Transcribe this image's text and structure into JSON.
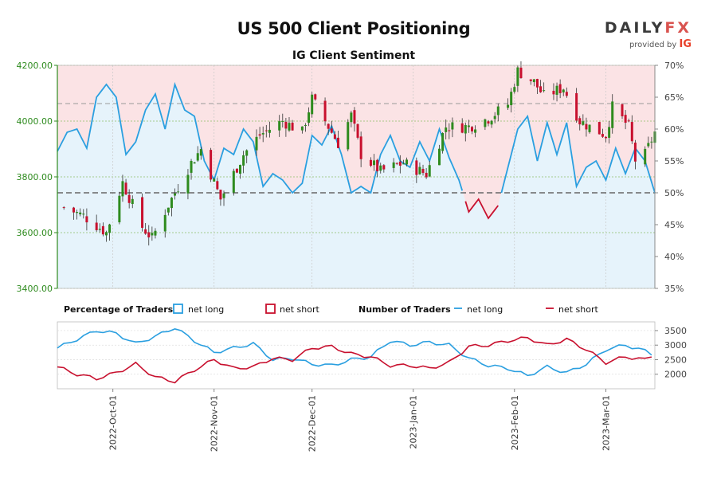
{
  "title": "US 500 Client Positioning",
  "subtitle": "IG Client Sentiment",
  "logo": {
    "brand_main": "DAILY",
    "brand_fx": "FX",
    "provided_by": "provided by",
    "provider": "IG"
  },
  "colors": {
    "long": "#2a9fe0",
    "short": "#c8102e",
    "long_fill": "#e6f3fb",
    "short_fill": "#fbe3e5",
    "candle_up": "#2e8b1e",
    "candle_down": "#c8102e",
    "price_axis": "#2e8b1e",
    "grid": "#8fbf6a"
  },
  "legend": {
    "pct_title": "Percentage of Traders",
    "count_title": "Number of Traders",
    "long": "net long",
    "short": "net short"
  },
  "chart_data": {
    "type": "candlestick_with_sentiment",
    "x_range": [
      "2022-09-14",
      "2023-03-16"
    ],
    "x_tick_labels": [
      "2022-Oct-01",
      "2022-Nov-01",
      "2022-Dec-01",
      "2023-Jan-01",
      "2023-Feb-01",
      "2023-Mar-01"
    ],
    "x_tick_dates": [
      "2022-10-01",
      "2022-11-01",
      "2022-12-01",
      "2023-01-01",
      "2023-02-01",
      "2023-03-01"
    ],
    "price_axis": {
      "ylim": [
        3400,
        4200
      ],
      "ticks": [
        "3400.00",
        "3600.00",
        "3800.00",
        "4000.00",
        "4200.00"
      ]
    },
    "pct_axis": {
      "ylim": [
        35,
        70
      ],
      "ticks": [
        "35%",
        "40%",
        "45%",
        "50%",
        "55%",
        "60%",
        "65%",
        "70%"
      ],
      "reference_lines": [
        50,
        64
      ]
    },
    "count_axis": {
      "ylim": [
        1500,
        3800
      ],
      "ticks": [
        "2000",
        "2500",
        "3000",
        "3500"
      ]
    },
    "price_anchors": [
      [
        "2022-09-16",
        3690
      ],
      [
        "2022-09-22",
        3660
      ],
      [
        "2022-09-29",
        3600
      ],
      [
        "2022-10-04",
        3780
      ],
      [
        "2022-10-10",
        3620
      ],
      [
        "2022-10-13",
        3580
      ],
      [
        "2022-10-18",
        3700
      ],
      [
        "2022-10-25",
        3850
      ],
      [
        "2022-10-28",
        3900
      ],
      [
        "2022-11-03",
        3720
      ],
      [
        "2022-11-10",
        3880
      ],
      [
        "2022-11-15",
        3950
      ],
      [
        "2022-11-22",
        4000
      ],
      [
        "2022-11-28",
        3960
      ],
      [
        "2022-12-01",
        4080
      ],
      [
        "2022-12-05",
        4000
      ],
      [
        "2022-12-09",
        3920
      ],
      [
        "2022-12-13",
        4020
      ],
      [
        "2022-12-16",
        3880
      ],
      [
        "2022-12-22",
        3820
      ],
      [
        "2022-12-29",
        3850
      ],
      [
        "2023-01-05",
        3810
      ],
      [
        "2023-01-11",
        3980
      ],
      [
        "2023-01-18",
        3980
      ],
      [
        "2023-01-24",
        4010
      ],
      [
        "2023-01-30",
        4060
      ],
      [
        "2023-02-02",
        4180
      ],
      [
        "2023-02-07",
        4140
      ],
      [
        "2023-02-10",
        4090
      ],
      [
        "2023-02-16",
        4120
      ],
      [
        "2023-02-21",
        4000
      ],
      [
        "2023-02-24",
        3980
      ],
      [
        "2023-03-01",
        3950
      ],
      [
        "2023-03-03",
        4050
      ],
      [
        "2023-03-08",
        3980
      ],
      [
        "2023-03-10",
        3860
      ],
      [
        "2023-03-13",
        3880
      ],
      [
        "2023-03-16",
        3960
      ]
    ],
    "long_pct_series": [
      [
        "2022-09-14",
        56.5
      ],
      [
        "2022-09-17",
        59.5
      ],
      [
        "2022-09-20",
        60.0
      ],
      [
        "2022-09-23",
        57.0
      ],
      [
        "2022-09-26",
        65.0
      ],
      [
        "2022-09-29",
        67.0
      ],
      [
        "2022-10-02",
        65.0
      ],
      [
        "2022-10-05",
        56.0
      ],
      [
        "2022-10-08",
        58.0
      ],
      [
        "2022-10-11",
        63.0
      ],
      [
        "2022-10-14",
        65.5
      ],
      [
        "2022-10-17",
        60.0
      ],
      [
        "2022-10-20",
        67.0
      ],
      [
        "2022-10-23",
        63.0
      ],
      [
        "2022-10-26",
        62.0
      ],
      [
        "2022-10-29",
        55.0
      ],
      [
        "2022-11-01",
        52.0
      ],
      [
        "2022-11-04",
        57.0
      ],
      [
        "2022-11-07",
        56.0
      ],
      [
        "2022-11-10",
        60.0
      ],
      [
        "2022-11-13",
        58.0
      ],
      [
        "2022-11-16",
        51.0
      ],
      [
        "2022-11-19",
        53.0
      ],
      [
        "2022-11-22",
        52.0
      ],
      [
        "2022-11-25",
        50.0
      ],
      [
        "2022-11-28",
        51.5
      ],
      [
        "2022-12-01",
        59.0
      ],
      [
        "2022-12-04",
        57.5
      ],
      [
        "2022-12-07",
        60.5
      ],
      [
        "2022-12-10",
        56.0
      ],
      [
        "2022-12-13",
        50.0
      ],
      [
        "2022-12-16",
        51.0
      ],
      [
        "2022-12-19",
        50.0
      ],
      [
        "2022-12-22",
        56.0
      ],
      [
        "2022-12-25",
        59.0
      ],
      [
        "2022-12-28",
        55.0
      ],
      [
        "2022-12-31",
        54.0
      ],
      [
        "2023-01-03",
        58.0
      ],
      [
        "2023-01-06",
        55.0
      ],
      [
        "2023-01-09",
        60.0
      ],
      [
        "2023-01-12",
        55.5
      ],
      [
        "2023-01-15",
        52.0
      ],
      [
        "2023-01-18",
        47.0
      ],
      [
        "2023-01-21",
        49.0
      ],
      [
        "2023-01-24",
        46.0
      ],
      [
        "2023-01-27",
        48.0
      ],
      [
        "2023-01-30",
        54.0
      ],
      [
        "2023-02-02",
        60.0
      ],
      [
        "2023-02-05",
        62.0
      ],
      [
        "2023-02-08",
        55.0
      ],
      [
        "2023-02-11",
        61.0
      ],
      [
        "2023-02-14",
        56.0
      ],
      [
        "2023-02-17",
        61.0
      ],
      [
        "2023-02-20",
        51.0
      ],
      [
        "2023-02-23",
        54.0
      ],
      [
        "2023-02-26",
        55.0
      ],
      [
        "2023-03-01",
        52.0
      ],
      [
        "2023-03-04",
        57.0
      ],
      [
        "2023-03-07",
        53.0
      ],
      [
        "2023-03-10",
        57.0
      ],
      [
        "2023-03-13",
        55.0
      ],
      [
        "2023-03-16",
        50.0
      ]
    ],
    "long_count_series": [
      [
        "2022-09-14",
        2900
      ],
      [
        "2022-09-20",
        3200
      ],
      [
        "2022-09-26",
        3500
      ],
      [
        "2022-10-02",
        3400
      ],
      [
        "2022-10-08",
        3050
      ],
      [
        "2022-10-14",
        3300
      ],
      [
        "2022-10-20",
        3600
      ],
      [
        "2022-10-26",
        3150
      ],
      [
        "2022-11-01",
        2750
      ],
      [
        "2022-11-07",
        2900
      ],
      [
        "2022-11-13",
        3050
      ],
      [
        "2022-11-19",
        2500
      ],
      [
        "2022-11-25",
        2550
      ],
      [
        "2022-12-01",
        2350
      ],
      [
        "2022-12-07",
        2300
      ],
      [
        "2022-12-13",
        2500
      ],
      [
        "2022-12-19",
        2600
      ],
      [
        "2022-12-25",
        3150
      ],
      [
        "2022-12-31",
        3000
      ],
      [
        "2023-01-06",
        3100
      ],
      [
        "2023-01-12",
        3000
      ],
      [
        "2023-01-18",
        2550
      ],
      [
        "2023-01-24",
        2300
      ],
      [
        "2023-01-30",
        2200
      ],
      [
        "2023-02-05",
        1950
      ],
      [
        "2023-02-11",
        2250
      ],
      [
        "2023-02-17",
        2050
      ],
      [
        "2023-02-23",
        2350
      ],
      [
        "2023-03-01",
        2850
      ],
      [
        "2023-03-07",
        3000
      ],
      [
        "2023-03-13",
        2800
      ],
      [
        "2023-03-16",
        2650
      ]
    ],
    "short_count_series": [
      [
        "2022-09-14",
        2250
      ],
      [
        "2022-09-20",
        2000
      ],
      [
        "2022-09-26",
        1850
      ],
      [
        "2022-10-02",
        2050
      ],
      [
        "2022-10-08",
        2350
      ],
      [
        "2022-10-14",
        1900
      ],
      [
        "2022-10-20",
        1750
      ],
      [
        "2022-10-26",
        2150
      ],
      [
        "2022-11-01",
        2500
      ],
      [
        "2022-11-07",
        2200
      ],
      [
        "2022-11-13",
        2250
      ],
      [
        "2022-11-19",
        2550
      ],
      [
        "2022-11-25",
        2500
      ],
      [
        "2022-12-01",
        2900
      ],
      [
        "2022-12-07",
        2950
      ],
      [
        "2022-12-13",
        2700
      ],
      [
        "2022-12-19",
        2600
      ],
      [
        "2022-12-25",
        2300
      ],
      [
        "2022-12-31",
        2300
      ],
      [
        "2023-01-06",
        2200
      ],
      [
        "2023-01-12",
        2400
      ],
      [
        "2023-01-18",
        2950
      ],
      [
        "2023-01-24",
        3000
      ],
      [
        "2023-01-30",
        3150
      ],
      [
        "2023-02-05",
        3250
      ],
      [
        "2023-02-11",
        3000
      ],
      [
        "2023-02-17",
        3200
      ],
      [
        "2023-02-23",
        2850
      ],
      [
        "2023-03-01",
        2400
      ],
      [
        "2023-03-07",
        2600
      ],
      [
        "2023-03-13",
        2500
      ],
      [
        "2023-03-16",
        2700
      ]
    ]
  }
}
